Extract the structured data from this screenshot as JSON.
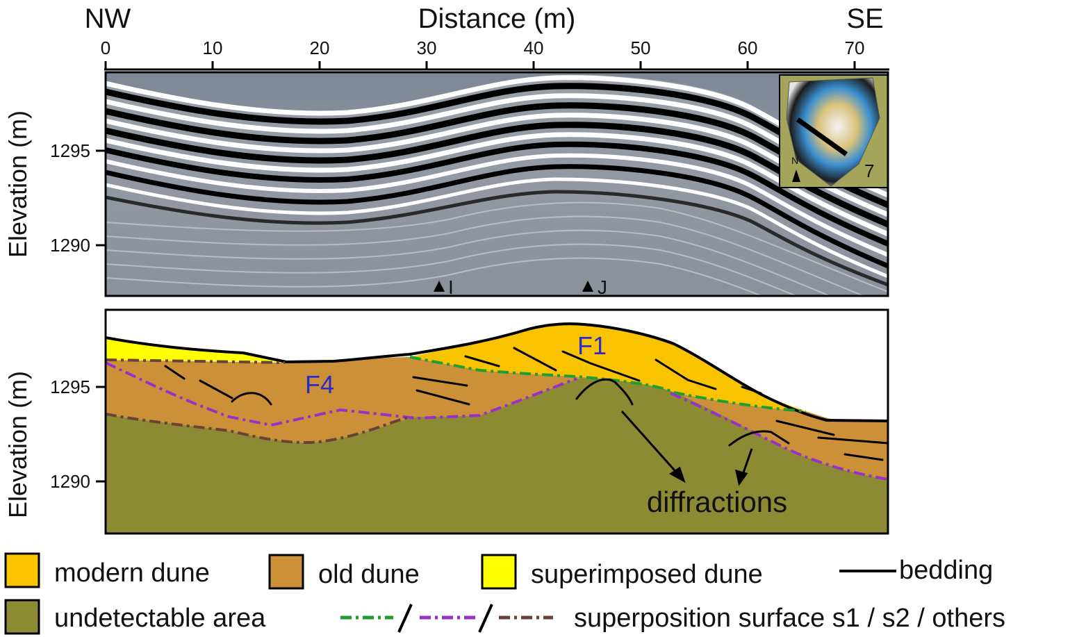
{
  "figure": {
    "direction_left": "NW",
    "direction_right": "SE",
    "x_axis_title": "Distance (m)",
    "x_ticks": [
      "0",
      "10",
      "20",
      "30",
      "40",
      "50",
      "60",
      "70"
    ],
    "y_axis_title_top": "Elevation (m)",
    "y_axis_title_bottom": "Elevation (m)",
    "y_ticks_top": [
      "1295",
      "1290"
    ],
    "y_ticks_bottom": [
      "1295",
      "1290"
    ],
    "markers": [
      {
        "label": "I",
        "distance_m": 31
      },
      {
        "label": "J",
        "distance_m": 45
      }
    ],
    "inset_label": "7",
    "inset_north": "N",
    "unit_labels": {
      "f1": "F1",
      "f4": "F4"
    },
    "annotation": "diffractions"
  },
  "colors": {
    "modern_dune": "#F9C300",
    "old_dune": "#CC9138",
    "superimposed_dune": "#FFFF00",
    "undetectable_area": "#8C8A32",
    "s1": "#1E9E2E",
    "s2": "#9B30C8",
    "others": "#6B4336",
    "bedding": "#000000",
    "unit_label": "#2A2ACF"
  },
  "legend": {
    "modern_dune": "modern dune",
    "old_dune": "old dune",
    "superimposed_dune": "superimposed dune",
    "bedding": "bedding",
    "undetectable_area": "undetectable area",
    "superposition": "superposition surface s1 / s2 / others"
  }
}
